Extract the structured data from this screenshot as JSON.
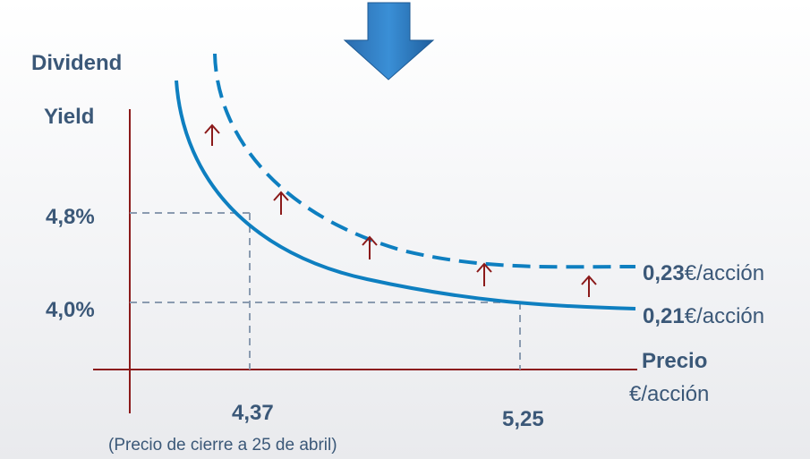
{
  "diagram": {
    "y_axis_title_line1": "Dividend",
    "y_axis_title_line2": "Yield",
    "x_axis_title": "Precio",
    "x_axis_unit": "€/acción",
    "y_ticks": [
      "4,8%",
      "4,0%"
    ],
    "x_ticks": [
      "4,37",
      "5,25"
    ],
    "x_note": "(Precio de cierre a 25 de abril)",
    "curves": [
      {
        "value": "0,23",
        "unit": "€/acción",
        "style": "dashed"
      },
      {
        "value": "0,21",
        "unit": "€/acción",
        "style": "solid"
      }
    ],
    "colors": {
      "curve": "#0e7fc0",
      "axis": "#8b1a1a",
      "arrow": "#8b1a1a",
      "guide": "#8a9bb0",
      "big_arrow": "#2e75b6",
      "text": "#3b5878"
    },
    "icons": {
      "big_arrow": "down-arrow-icon",
      "shift_arrows": "up-arrow-icon"
    }
  }
}
